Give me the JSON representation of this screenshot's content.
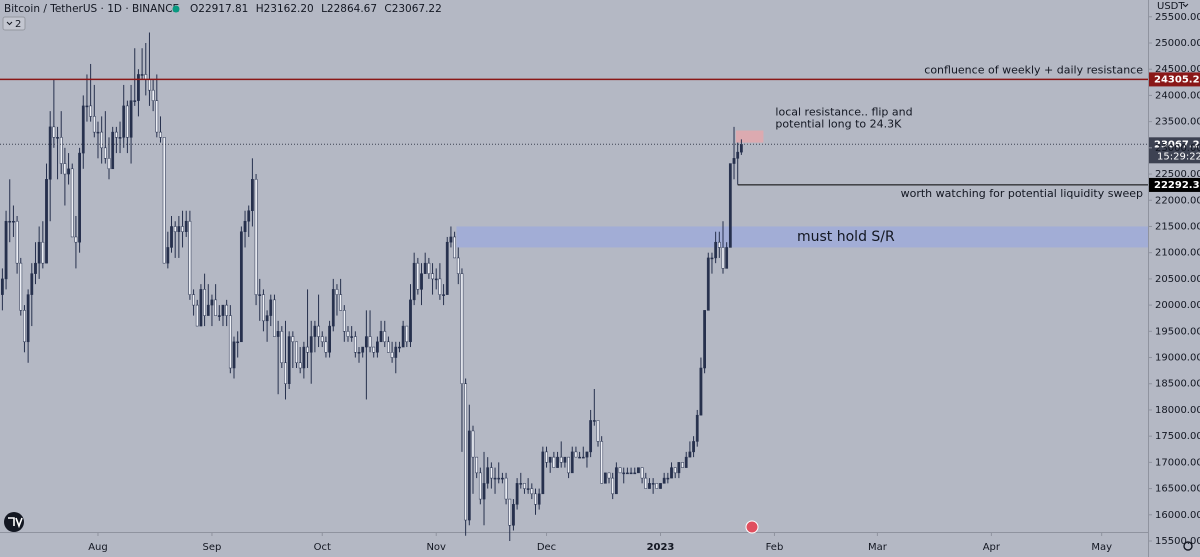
{
  "header": {
    "symbol": "Bitcoin / TetherUS · 1D · BINANCE",
    "ohlc_legend": [
      "O22917.81",
      "H23162.20",
      "L22864.67",
      "C23067.22"
    ],
    "indicators_count": "2",
    "currency": "USDT"
  },
  "chart_data": {
    "type": "candlestick",
    "up_color": "#26304d",
    "down_color": "#eef0f6",
    "wick_color": "#26304d",
    "xlim": [
      -0.65,
      311.6
    ],
    "xticks": [
      {
        "value": 26,
        "label": "Aug"
      },
      {
        "value": 57,
        "label": "Sep"
      },
      {
        "value": 87,
        "label": "Oct"
      },
      {
        "value": 118,
        "label": "Nov"
      },
      {
        "value": 148,
        "label": "Dec"
      },
      {
        "value": 179,
        "label": "2023"
      },
      {
        "value": 210,
        "label": "Feb"
      },
      {
        "value": 238,
        "label": "Mar"
      },
      {
        "value": 269,
        "label": "Apr"
      },
      {
        "value": 299,
        "label": "May"
      }
    ],
    "ylim": [
      15195,
      25820
    ],
    "yticks": [
      {
        "value": 15500,
        "label": "15500.00"
      },
      {
        "value": 16000,
        "label": "16000.00"
      },
      {
        "value": 16500,
        "label": "16500.00"
      },
      {
        "value": 17000,
        "label": "17000.00"
      },
      {
        "value": 17500,
        "label": "17500.00"
      },
      {
        "value": 18000,
        "label": "18000.00"
      },
      {
        "value": 18500,
        "label": "18500.00"
      },
      {
        "value": 19000,
        "label": "19000.00"
      },
      {
        "value": 19500,
        "label": "19500.00"
      },
      {
        "value": 20000,
        "label": "20000.00"
      },
      {
        "value": 20500,
        "label": "20500.00"
      },
      {
        "value": 21000,
        "label": "21000.00"
      },
      {
        "value": 21500,
        "label": "21500.00"
      },
      {
        "value": 22000,
        "label": "22000.00"
      },
      {
        "value": 22500,
        "label": "22500.00"
      },
      {
        "value": 23000,
        "label": "23000.00"
      },
      {
        "value": 23500,
        "label": "23500.00"
      },
      {
        "value": 24000,
        "label": "24000.00"
      },
      {
        "value": 24500,
        "label": "24500.00"
      },
      {
        "value": 25000,
        "label": "25000.00"
      },
      {
        "value": 25500,
        "label": "25500.00"
      }
    ],
    "grid": false,
    "ohlc": [
      [
        20200,
        20700,
        19900,
        20500
      ],
      [
        20500,
        21800,
        20300,
        21600
      ],
      [
        21600,
        22400,
        21200,
        21600
      ],
      [
        21600,
        21900,
        21300,
        21600
      ],
      [
        21600,
        21700,
        20600,
        20800
      ],
      [
        20800,
        20900,
        19800,
        19900
      ],
      [
        19900,
        20000,
        19100,
        19300
      ],
      [
        19300,
        20300,
        18900,
        20200
      ],
      [
        20200,
        20800,
        19600,
        20600
      ],
      [
        20600,
        21200,
        20400,
        20800
      ],
      [
        20800,
        21500,
        20500,
        21200
      ],
      [
        21200,
        21600,
        20700,
        20800
      ],
      [
        20800,
        22700,
        20800,
        22400
      ],
      [
        22400,
        23700,
        21600,
        23400
      ],
      [
        23400,
        24300,
        23000,
        23200
      ],
      [
        23200,
        23400,
        22400,
        23200
      ],
      [
        23200,
        23700,
        22500,
        22700
      ],
      [
        22700,
        23000,
        21900,
        22500
      ],
      [
        22500,
        22900,
        22300,
        22600
      ],
      [
        22600,
        22700,
        21300,
        21300
      ],
      [
        21300,
        21700,
        20700,
        21200
      ],
      [
        21200,
        23000,
        21000,
        22900
      ],
      [
        22900,
        24000,
        22600,
        23800
      ],
      [
        23800,
        24400,
        23500,
        23800
      ],
      [
        23800,
        24600,
        23500,
        23600
      ],
      [
        23600,
        24200,
        23200,
        23300
      ],
      [
        23300,
        23500,
        22800,
        23300
      ],
      [
        23300,
        23600,
        22700,
        23000
      ],
      [
        23000,
        23700,
        22700,
        22800
      ],
      [
        22800,
        23200,
        22400,
        22600
      ],
      [
        22600,
        23400,
        22600,
        23300
      ],
      [
        23300,
        23400,
        22900,
        23200
      ],
      [
        23200,
        23500,
        22900,
        23200
      ],
      [
        23200,
        24200,
        23000,
        23800
      ],
      [
        23800,
        23900,
        22900,
        23200
      ],
      [
        23200,
        24200,
        22700,
        23900
      ],
      [
        23900,
        24900,
        23800,
        23900
      ],
      [
        23900,
        24500,
        23600,
        24400
      ],
      [
        24400,
        24900,
        24300,
        24400
      ],
      [
        24400,
        25000,
        24000,
        24300
      ],
      [
        24300,
        25200,
        23800,
        24100
      ],
      [
        24100,
        24300,
        23700,
        23900
      ],
      [
        23900,
        24400,
        23200,
        23300
      ],
      [
        23300,
        23600,
        23100,
        23200
      ],
      [
        23200,
        23200,
        20800,
        20800
      ],
      [
        20800,
        21400,
        20700,
        21100
      ],
      [
        21100,
        21700,
        21000,
        21500
      ],
      [
        21500,
        21600,
        20900,
        21400
      ],
      [
        21400,
        21700,
        20900,
        21500
      ],
      [
        21500,
        21800,
        21100,
        21400
      ],
      [
        21400,
        21800,
        21300,
        21600
      ],
      [
        21600,
        21800,
        20100,
        20200
      ],
      [
        20200,
        20300,
        19800,
        20000
      ],
      [
        20000,
        20100,
        19600,
        19600
      ],
      [
        19600,
        20400,
        19600,
        20300
      ],
      [
        20300,
        20600,
        19600,
        19800
      ],
      [
        19800,
        20400,
        19800,
        20000
      ],
      [
        20000,
        20200,
        19600,
        20100
      ],
      [
        20100,
        20400,
        19800,
        19800
      ],
      [
        19800,
        20000,
        19700,
        19800
      ],
      [
        19800,
        20000,
        19600,
        20000
      ],
      [
        20000,
        20100,
        19600,
        19800
      ],
      [
        19800,
        20000,
        18700,
        18800
      ],
      [
        18800,
        19400,
        18600,
        19300
      ],
      [
        19300,
        19500,
        19000,
        19300
      ],
      [
        19300,
        21500,
        19300,
        21400
      ],
      [
        21400,
        21800,
        21100,
        21600
      ],
      [
        21600,
        21900,
        21300,
        21800
      ],
      [
        21800,
        22800,
        21500,
        22400
      ],
      [
        22400,
        22500,
        20000,
        20200
      ],
      [
        20200,
        20500,
        19700,
        20200
      ],
      [
        20200,
        20300,
        19500,
        19700
      ],
      [
        19700,
        19900,
        19300,
        19800
      ],
      [
        19800,
        20200,
        19600,
        20100
      ],
      [
        20100,
        20200,
        19400,
        19400
      ],
      [
        19400,
        19700,
        18300,
        19500
      ],
      [
        19500,
        19600,
        18800,
        18900
      ],
      [
        18900,
        19700,
        18200,
        18500
      ],
      [
        18500,
        19500,
        18400,
        19400
      ],
      [
        19400,
        19500,
        18800,
        19300
      ],
      [
        19300,
        19300,
        18800,
        18900
      ],
      [
        18900,
        19200,
        18700,
        18800
      ],
      [
        18800,
        19300,
        18600,
        19200
      ],
      [
        19200,
        20300,
        18800,
        19100
      ],
      [
        19100,
        19700,
        18500,
        19400
      ],
      [
        19400,
        19700,
        19100,
        19600
      ],
      [
        19600,
        20200,
        19200,
        19400
      ],
      [
        19400,
        19500,
        19200,
        19300
      ],
      [
        19300,
        19400,
        19000,
        19100
      ],
      [
        19100,
        19700,
        19000,
        19600
      ],
      [
        19600,
        20500,
        19500,
        20300
      ],
      [
        20300,
        20400,
        19800,
        20200
      ],
      [
        20200,
        20500,
        19900,
        19900
      ],
      [
        19900,
        20000,
        19300,
        19500
      ],
      [
        19500,
        19600,
        19300,
        19400
      ],
      [
        19400,
        19600,
        19300,
        19400
      ],
      [
        19400,
        19500,
        19000,
        19100
      ],
      [
        19100,
        19200,
        18900,
        19100
      ],
      [
        19100,
        19200,
        19000,
        19200
      ],
      [
        19200,
        19900,
        18200,
        19400
      ],
      [
        19400,
        19900,
        19100,
        19200
      ],
      [
        19200,
        19200,
        19000,
        19100
      ],
      [
        19100,
        19400,
        19000,
        19300
      ],
      [
        19300,
        19700,
        19300,
        19500
      ],
      [
        19500,
        19700,
        19200,
        19300
      ],
      [
        19300,
        19400,
        19100,
        19100
      ],
      [
        19100,
        19300,
        18900,
        19000
      ],
      [
        19000,
        19300,
        18700,
        19200
      ],
      [
        19200,
        19300,
        19100,
        19200
      ],
      [
        19200,
        19700,
        19200,
        19600
      ],
      [
        19600,
        19600,
        19200,
        19300
      ],
      [
        19300,
        20400,
        19200,
        20100
      ],
      [
        20100,
        21000,
        20000,
        20800
      ],
      [
        20800,
        20900,
        20200,
        20300
      ],
      [
        20300,
        20800,
        20000,
        20600
      ],
      [
        20600,
        21000,
        20600,
        20800
      ],
      [
        20800,
        20900,
        20500,
        20600
      ],
      [
        20600,
        20800,
        20200,
        20500
      ],
      [
        20500,
        20700,
        20300,
        20500
      ],
      [
        20500,
        20800,
        20100,
        20200
      ],
      [
        20200,
        20400,
        20000,
        20200
      ],
      [
        20200,
        21300,
        20200,
        21200
      ],
      [
        21200,
        21500,
        21100,
        21300
      ],
      [
        21300,
        21400,
        20900,
        20900
      ],
      [
        20900,
        21100,
        20400,
        20600
      ],
      [
        20600,
        20700,
        17200,
        18500
      ],
      [
        18500,
        18600,
        15600,
        15900
      ],
      [
        15900,
        18100,
        15800,
        17600
      ],
      [
        17600,
        17700,
        16400,
        17100
      ],
      [
        17100,
        17100,
        16700,
        16800
      ],
      [
        16800,
        16900,
        16200,
        16300
      ],
      [
        16300,
        17200,
        15800,
        16600
      ],
      [
        16600,
        17100,
        16500,
        16900
      ],
      [
        16900,
        17000,
        16500,
        16700
      ],
      [
        16700,
        16900,
        16400,
        16700
      ],
      [
        16700,
        17000,
        16600,
        16700
      ],
      [
        16700,
        16800,
        16600,
        16700
      ],
      [
        16700,
        16800,
        16200,
        16300
      ],
      [
        16300,
        16300,
        15500,
        15800
      ],
      [
        15800,
        16300,
        15700,
        16200
      ],
      [
        16200,
        16700,
        16100,
        16600
      ],
      [
        16600,
        16800,
        16500,
        16600
      ],
      [
        16600,
        16600,
        16400,
        16500
      ],
      [
        16500,
        16700,
        16400,
        16500
      ],
      [
        16500,
        16600,
        16300,
        16400
      ],
      [
        16400,
        16500,
        16000,
        16200
      ],
      [
        16200,
        16500,
        16100,
        16400
      ],
      [
        16400,
        17300,
        16400,
        17200
      ],
      [
        17200,
        17300,
        16900,
        17000
      ],
      [
        17000,
        17100,
        16800,
        17100
      ],
      [
        17100,
        17200,
        16900,
        16900
      ],
      [
        16900,
        17200,
        16900,
        17100
      ],
      [
        17100,
        17400,
        16900,
        17000
      ],
      [
        17000,
        17100,
        16900,
        17100
      ],
      [
        17100,
        17100,
        16700,
        16800
      ],
      [
        16800,
        17300,
        16800,
        17200
      ],
      [
        17200,
        17300,
        17100,
        17100
      ],
      [
        17100,
        17200,
        17100,
        17100
      ],
      [
        17100,
        17300,
        17100,
        17100
      ],
      [
        17100,
        17200,
        16900,
        17200
      ],
      [
        17200,
        18000,
        17100,
        17800
      ],
      [
        17800,
        18400,
        17700,
        17800
      ],
      [
        17800,
        17800,
        17300,
        17400
      ],
      [
        17400,
        17500,
        16600,
        16600
      ],
      [
        16600,
        16800,
        16600,
        16800
      ],
      [
        16800,
        16800,
        16600,
        16700
      ],
      [
        16700,
        16800,
        16300,
        16400
      ],
      [
        16400,
        17000,
        16400,
        16900
      ],
      [
        16900,
        16900,
        16800,
        16800
      ],
      [
        16800,
        16900,
        16600,
        16800
      ],
      [
        16800,
        16900,
        16800,
        16800
      ],
      [
        16800,
        16900,
        16800,
        16800
      ],
      [
        16800,
        16900,
        16800,
        16800
      ],
      [
        16800,
        16900,
        16800,
        16900
      ],
      [
        16900,
        16900,
        16600,
        16700
      ],
      [
        16700,
        16800,
        16500,
        16500
      ],
      [
        16500,
        16700,
        16500,
        16600
      ],
      [
        16600,
        16700,
        16400,
        16600
      ],
      [
        16600,
        16600,
        16500,
        16500
      ],
      [
        16500,
        16600,
        16500,
        16600
      ],
      [
        16600,
        16800,
        16600,
        16700
      ],
      [
        16700,
        16800,
        16600,
        16700
      ],
      [
        16700,
        17000,
        16700,
        16900
      ],
      [
        16900,
        16900,
        16700,
        16800
      ],
      [
        16800,
        17000,
        16700,
        17000
      ],
      [
        17000,
        17000,
        16900,
        16900
      ],
      [
        16900,
        17200,
        16900,
        17100
      ],
      [
        17100,
        17400,
        17100,
        17200
      ],
      [
        17200,
        17500,
        17100,
        17400
      ],
      [
        17400,
        18000,
        17300,
        17900
      ],
      [
        17900,
        19000,
        17900,
        18800
      ],
      [
        18800,
        19900,
        18700,
        19900
      ],
      [
        19900,
        21000,
        19900,
        20900
      ],
      [
        20900,
        21000,
        20600,
        20900
      ],
      [
        20900,
        21400,
        20800,
        21200
      ],
      [
        21200,
        21400,
        20900,
        21100
      ],
      [
        21100,
        21600,
        20600,
        20700
      ],
      [
        20700,
        21200,
        20700,
        21100
      ],
      [
        21100,
        22700,
        21100,
        22700
      ],
      [
        22700,
        23400,
        22400,
        22800
      ],
      [
        22800,
        23100,
        22300,
        22918
      ],
      [
        22917.81,
        23162.2,
        22864.67,
        23067.22
      ]
    ],
    "levels": [
      {
        "value": 24305.25,
        "text": "confluence of weekly + daily resistance",
        "color": "#8a1717",
        "from": -0.65
      },
      {
        "value": 22292.37,
        "text": "worth watching for potential liquidity sweep",
        "color": "#000000",
        "from": 200
      }
    ],
    "last_price": {
      "value": 23067.22,
      "countdown": "15:29:22",
      "color": "#3d4252"
    },
    "zones": [
      {
        "text": [
          "must hold S/R"
        ],
        "ylim": [
          21100,
          21500
        ],
        "from": 123.5,
        "to": 311.6,
        "color": "#9eaadb"
      },
      {
        "text": [
          "local resistance.. flip and",
          "potential long to 24.3K"
        ],
        "ylim": [
          23100,
          23330
        ],
        "from": 199.5,
        "to": 207,
        "color": "#e6a6ab"
      }
    ]
  }
}
